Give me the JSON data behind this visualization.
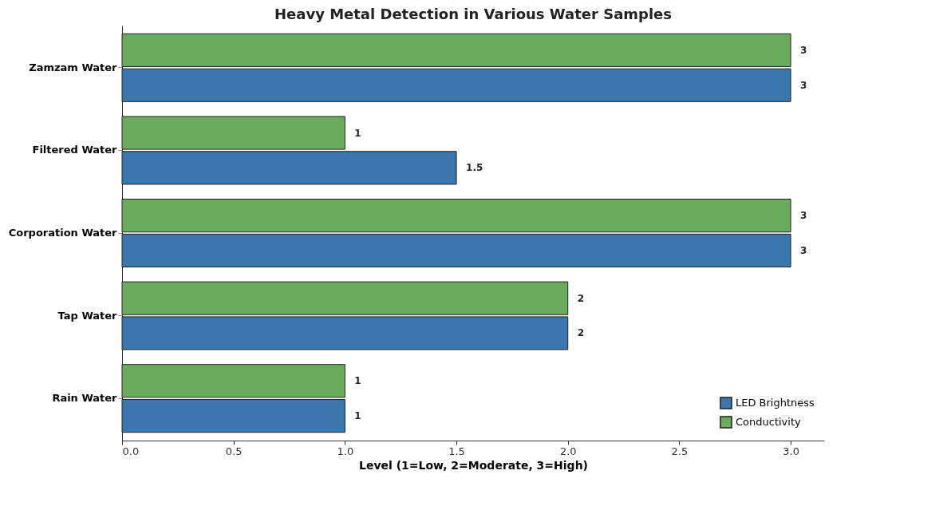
{
  "chart_data": {
    "type": "bar",
    "orientation": "horizontal",
    "title": "Heavy Metal Detection in Various Water Samples",
    "xlabel": "Level (1=Low, 2=Moderate, 3=High)",
    "categories": [
      "Zamzam Water",
      "Filtered Water",
      "Corporation Water",
      "Tap Water",
      "Rain Water"
    ],
    "series": [
      {
        "name": "LED Brightness",
        "color": "#3b76ad",
        "values": [
          3,
          1.5,
          3,
          2,
          1
        ]
      },
      {
        "name": "Conductivity",
        "color": "#6aab5e",
        "values": [
          3,
          1,
          3,
          2,
          1
        ]
      }
    ],
    "xlim": [
      0,
      3.15
    ],
    "xticks": [
      {
        "value": 0,
        "label": "0.0"
      },
      {
        "value": 0.5,
        "label": "0.5"
      },
      {
        "value": 1,
        "label": "1.0"
      },
      {
        "value": 1.5,
        "label": "1.5"
      },
      {
        "value": 2,
        "label": "2.0"
      },
      {
        "value": 2.5,
        "label": "2.5"
      },
      {
        "value": 3,
        "label": "3.0"
      }
    ],
    "data_labels": true,
    "legend": "bottom right",
    "grid": false
  }
}
